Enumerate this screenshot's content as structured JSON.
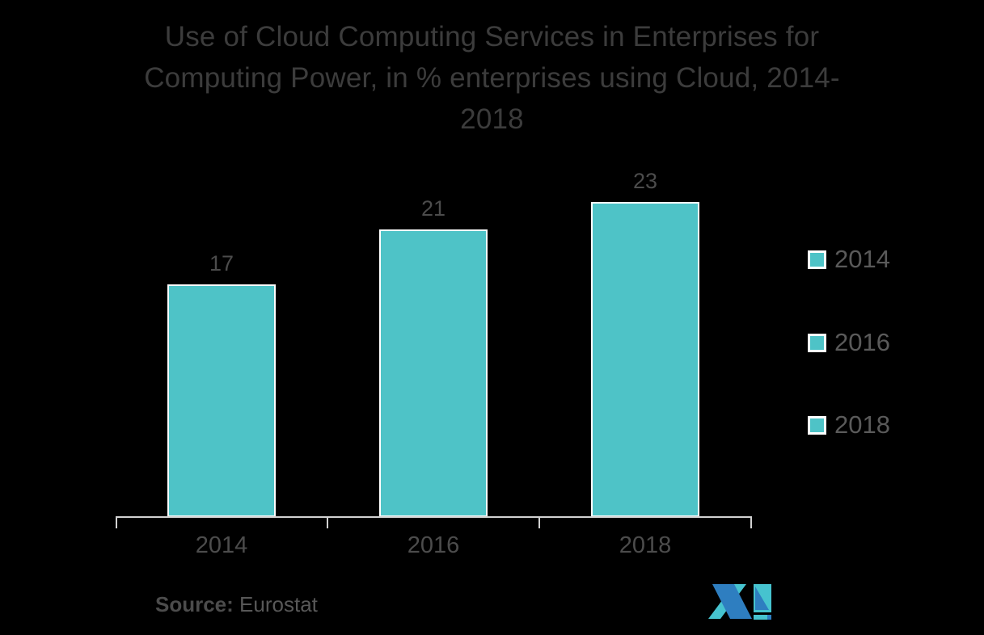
{
  "title": {
    "lines": [
      "Use of Cloud Computing Services in Enterprises for",
      "Computing Power, in % enterprises using Cloud, 2014-",
      "2018"
    ]
  },
  "chart_data": {
    "type": "bar",
    "title": "Use of Cloud Computing Services in Enterprises for Computing Power, in % enterprises using Cloud, 2014-2018",
    "categories": [
      "2014",
      "2016",
      "2018"
    ],
    "values": [
      17,
      21,
      23
    ],
    "data_labels_shown": true,
    "xlabel": "",
    "ylabel": "",
    "ylim": [
      0,
      25
    ],
    "grid": false,
    "y_axis_shown": false,
    "legend_position": "right",
    "legend_entries": [
      "2014",
      "2016",
      "2018"
    ]
  },
  "legend": {
    "items": [
      {
        "label": "2014"
      },
      {
        "label": "2016"
      },
      {
        "label": "2018"
      }
    ]
  },
  "source": {
    "label": "Source:",
    "value": "Eurostat"
  },
  "icons": {
    "logo_icon": "mordor-intelligence-m-logo"
  },
  "colors": {
    "background": "#000000",
    "bar_fill": "#4EC3C7",
    "bar_border": "#FFFFFF",
    "axis": "#D2D2D2",
    "title_text": "#3C3C3C",
    "label_text": "#4C4C4C",
    "legend_text": "#5A5A5A",
    "source_text": "#585858",
    "logo_teal": "#46C3CF",
    "logo_blue": "#2E7EC0"
  }
}
